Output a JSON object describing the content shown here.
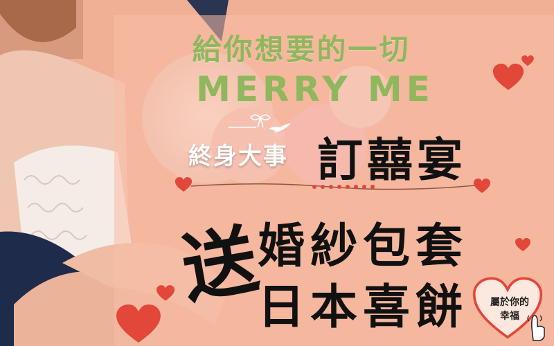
{
  "banner": {
    "headline": "給你想要的一切",
    "subheadline": "MERRY ME",
    "brand": "終身大事",
    "event": "訂囍宴",
    "gift_marker": "送",
    "gift_line_1": "婚紗包套",
    "gift_line_2": "日本喜餅"
  },
  "badge": {
    "line_1": "屬於你的",
    "line_2": "幸福"
  },
  "colors": {
    "background": "#f2b59c",
    "accent_green": "#8fb75c",
    "heart_red": "#e2473a",
    "text_dark": "#111111"
  }
}
